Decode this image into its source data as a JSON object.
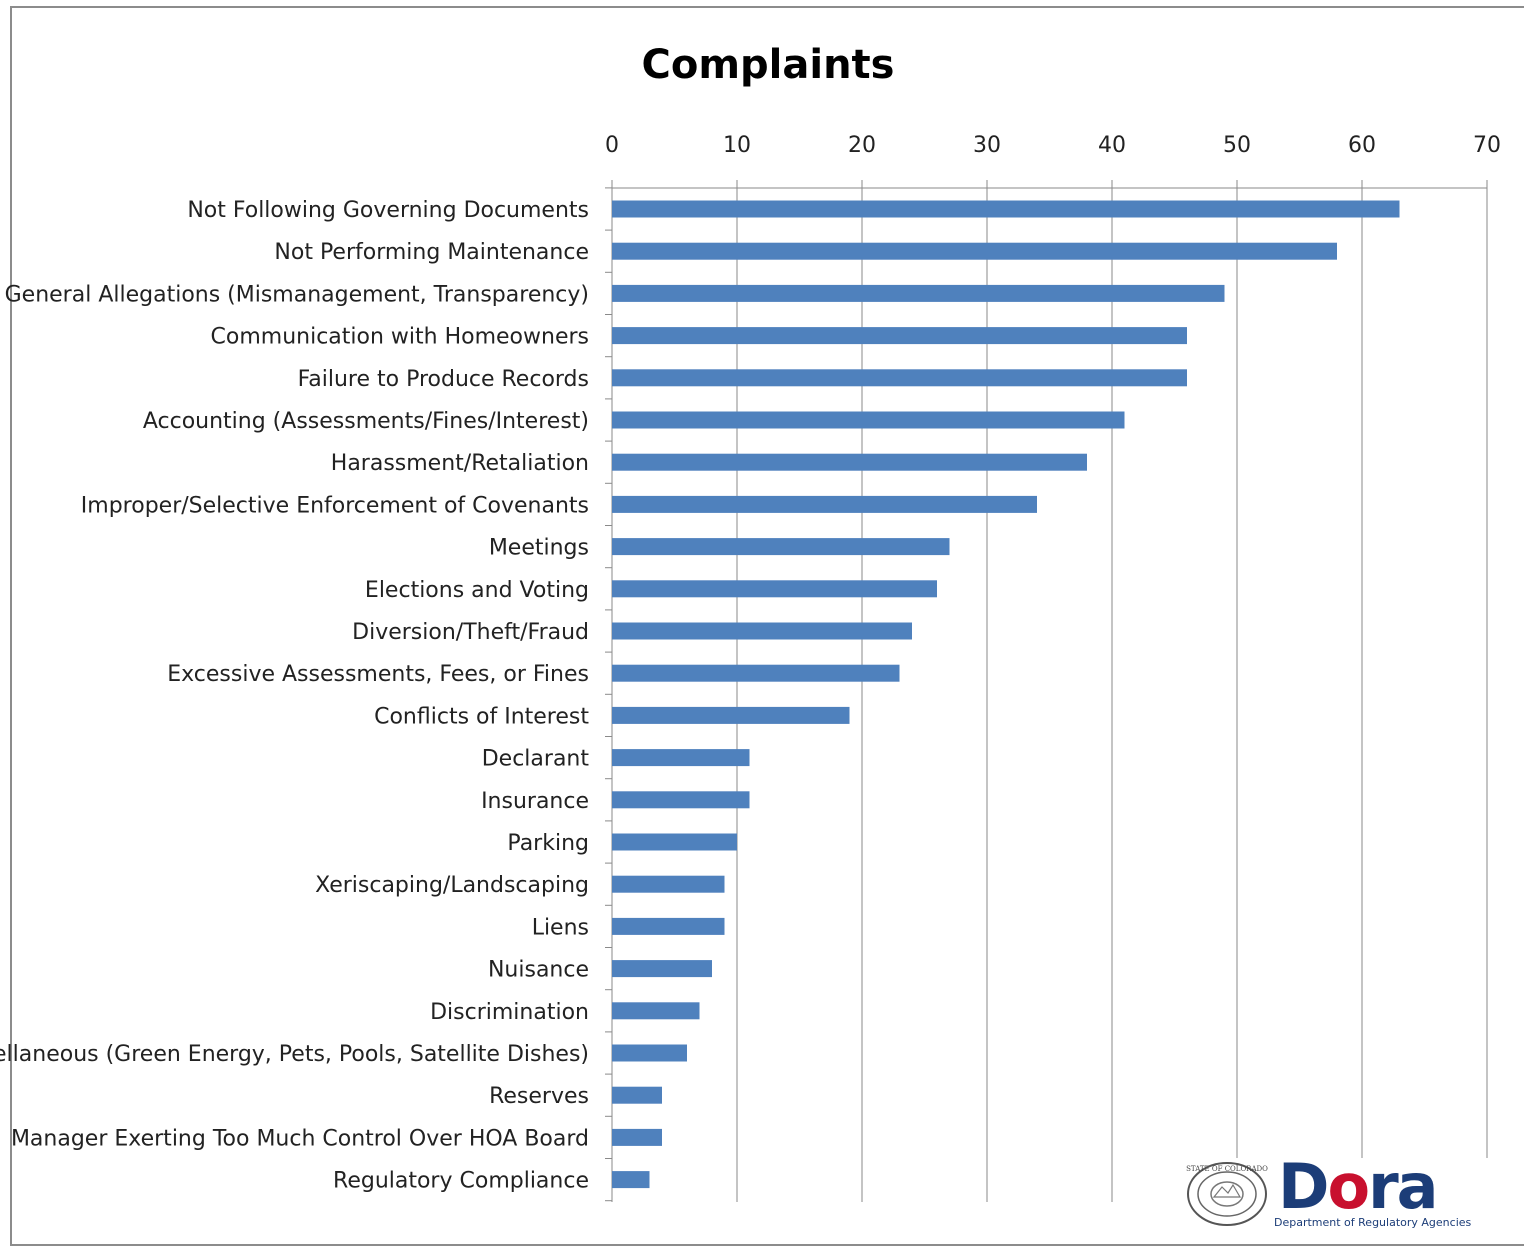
{
  "chart_data": {
    "type": "bar",
    "orientation": "horizontal",
    "title": "Complaints",
    "xlim": [
      0,
      70
    ],
    "xticks": [
      0,
      10,
      20,
      30,
      40,
      50,
      60,
      70
    ],
    "x_axis_position": "top",
    "grid": true,
    "bar_color": "#4f81bd",
    "categories": [
      "Not Following Governing Documents",
      "Not Performing Maintenance",
      "General Allegations (Mismanagement, Transparency)",
      "Communication with Homeowners",
      "Failure to Produce Records",
      "Accounting (Assessments/Fines/Interest)",
      "Harassment/Retaliation",
      "Improper/Selective Enforcement of Covenants",
      "Meetings",
      "Elections and Voting",
      "Diversion/Theft/Fraud",
      "Excessive Assessments, Fees, or Fines",
      "Conflicts of Interest",
      "Declarant",
      "Insurance",
      "Parking",
      "Xeriscaping/Landscaping",
      "Liens",
      "Nuisance",
      "Discrimination",
      "Miscellaneous (Green Energy, Pets, Pools, Satellite Dishes)",
      "Reserves",
      "Manager Exerting Too Much Control Over HOA Board",
      "Regulatory Compliance"
    ],
    "values": [
      63,
      58,
      49,
      46,
      46,
      41,
      38,
      34,
      27,
      26,
      24,
      23,
      19,
      11,
      11,
      10,
      9,
      9,
      8,
      7,
      6,
      4,
      4,
      3
    ]
  },
  "logo": {
    "name": "Dora",
    "subtitle": "Department of Regulatory Agencies",
    "seal_text": "STATE OF COLORADO"
  }
}
